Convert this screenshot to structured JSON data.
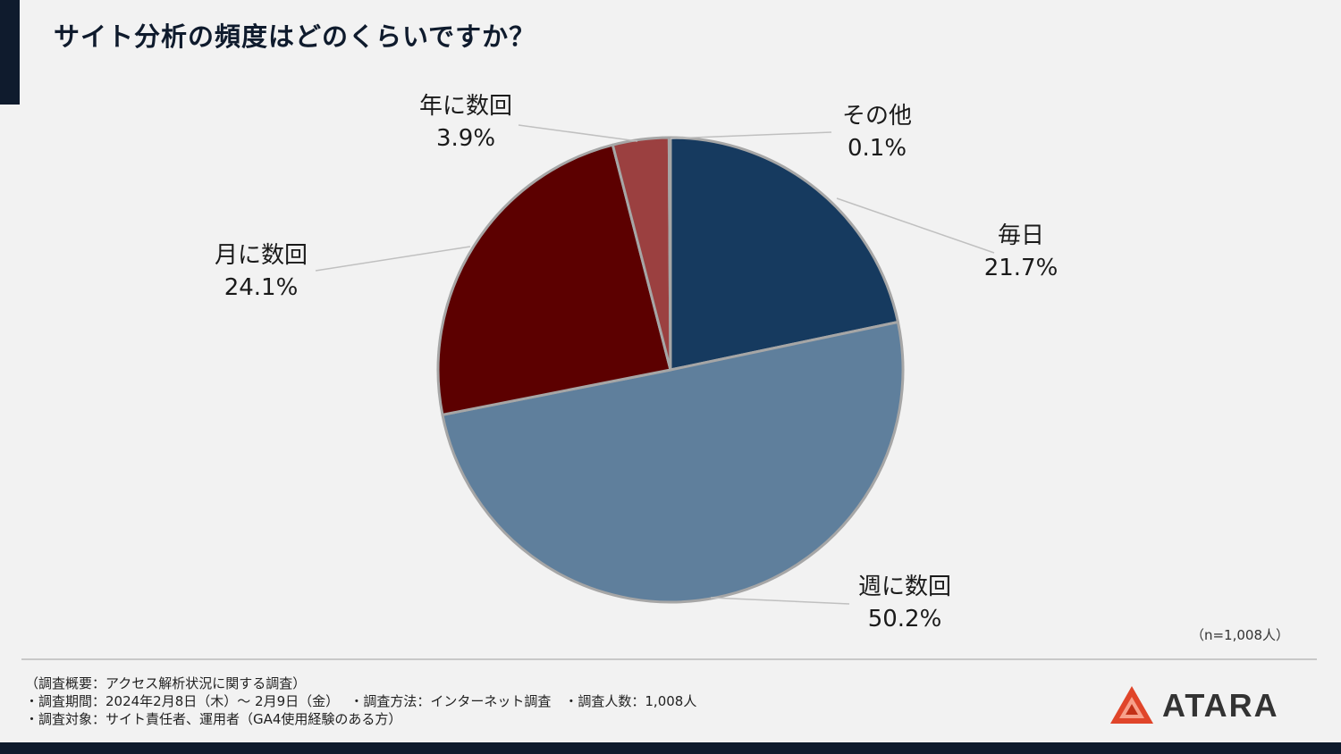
{
  "title": "サイト分析の頻度はどのくらいですか？",
  "sample_size": "（n=1,008人）",
  "notes": {
    "line1": "（調査概要：アクセス解析状況に関する調査）",
    "line2": "・調査期間：2024年2月8日（木）～ 2月9日（金）　 ・調査方法：インターネット調査　・調査人数：1,008人",
    "line3": "・調査対象：サイト責任者、運用者（GA4使用経験のある方）"
  },
  "logo": {
    "text": "ATARA",
    "icon": "atara-logo-icon"
  },
  "colors": {
    "daily": "#163a5f",
    "weekly": "#5f7f9c",
    "monthly": "#5c0000",
    "yearly": "#9b4040",
    "other": "#c0c0c0",
    "slice_border": "#a6a6a6",
    "leader": "#c0c0c0"
  },
  "chart_data": {
    "type": "pie",
    "categories": [
      "毎日",
      "週に数回",
      "月に数回",
      "年に数回",
      "その他"
    ],
    "values": [
      21.7,
      50.2,
      24.1,
      3.9,
      0.1
    ],
    "value_labels": [
      "21.7%",
      "50.2%",
      "24.1%",
      "3.9%",
      "0.1%"
    ],
    "start_angle": "12 o'clock",
    "direction": "clockwise",
    "legend": "none"
  }
}
